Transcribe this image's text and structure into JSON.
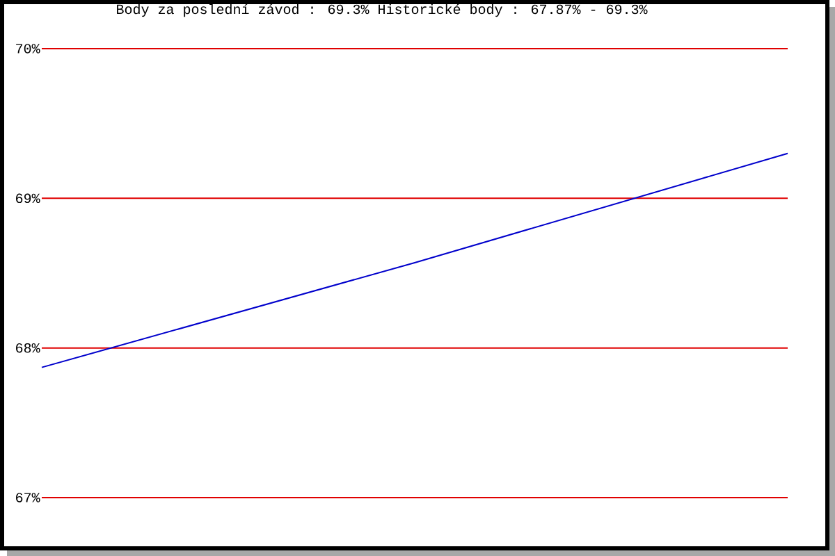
{
  "chart_data": {
    "type": "line",
    "title": "Body za poslední závod : 69.3%  Historické body : 67.87% - 69.3%",
    "categories": [
      null,
      null,
      null
    ],
    "series": [
      {
        "color": "#0000cc",
        "values": [
          67.87,
          68.57,
          69.3
        ]
      }
    ],
    "ylim": [
      67,
      70
    ],
    "yticks": [
      {
        "value": 67,
        "label": "67%"
      },
      {
        "value": 68,
        "label": "68%"
      },
      {
        "value": 69,
        "label": "69%"
      },
      {
        "value": 70,
        "label": "70%"
      }
    ],
    "grid": "y",
    "line_style": "solid"
  }
}
